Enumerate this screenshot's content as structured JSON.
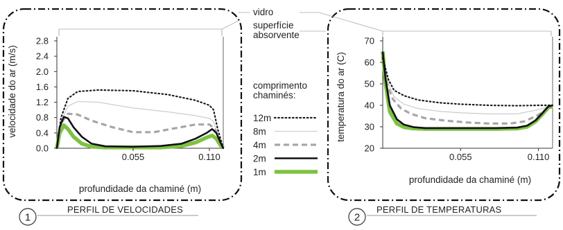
{
  "labels": {
    "vidro": "vidro",
    "superficie_line1": "superfície",
    "superficie_line2": "absorvente",
    "legend_title_line1": "comprimento",
    "legend_title_line2": "chaminés:"
  },
  "legend": [
    {
      "label": "12m",
      "style": "dotted"
    },
    {
      "label": "8m",
      "style": "thin"
    },
    {
      "label": "4m",
      "style": "dashed"
    },
    {
      "label": "2m",
      "style": "solid"
    },
    {
      "label": "1m",
      "style": "thick"
    }
  ],
  "colors": {
    "m12": "#1a1a1a",
    "m8": "#c8c8c8",
    "m4": "#a6a6a6",
    "m2": "#111111",
    "m1": "#7dc242",
    "axis": "#333333",
    "frame": "#111111"
  },
  "captions": [
    {
      "number": "1",
      "text": "PERFIL DE VELOCIDADES"
    },
    {
      "number": "2",
      "text": "PERFIL DE TEMPERATURAS"
    }
  ],
  "chart_data": [
    {
      "type": "line",
      "title": "PERFIL DE VELOCIDADES",
      "xlabel": "profundidade da chaminé (m)",
      "ylabel": "velocidade do ar (m/s)",
      "xlim": [
        0,
        0.12
      ],
      "ylim": [
        0,
        2.8
      ],
      "xticks": [
        0.055,
        0.11
      ],
      "xtick_labels": [
        "0.055",
        "0.110"
      ],
      "yticks": [
        0.0,
        0.4,
        0.8,
        1.2,
        1.6,
        2.0,
        2.4,
        2.8
      ],
      "ytick_labels": [
        "0.0",
        "0.4",
        "0.8",
        "1.2",
        "1.6",
        "2.0",
        "2.4",
        "2.8"
      ],
      "series": [
        {
          "name": "12m",
          "style": "dotted",
          "x": [
            0,
            0.003,
            0.008,
            0.015,
            0.03,
            0.055,
            0.08,
            0.1,
            0.11,
            0.113,
            0.116,
            0.12
          ],
          "y": [
            0,
            0.8,
            1.3,
            1.48,
            1.52,
            1.5,
            1.4,
            1.25,
            1.12,
            1.0,
            0.5,
            0
          ]
        },
        {
          "name": "8m",
          "style": "thin",
          "x": [
            0,
            0.003,
            0.008,
            0.015,
            0.03,
            0.055,
            0.08,
            0.1,
            0.11,
            0.113,
            0.116,
            0.12
          ],
          "y": [
            0,
            0.7,
            1.1,
            1.22,
            1.2,
            1.05,
            0.95,
            0.85,
            0.78,
            0.7,
            0.35,
            0
          ]
        },
        {
          "name": "4m",
          "style": "dashed",
          "x": [
            0,
            0.003,
            0.008,
            0.015,
            0.025,
            0.04,
            0.055,
            0.07,
            0.085,
            0.1,
            0.11,
            0.114,
            0.117,
            0.12
          ],
          "y": [
            0,
            0.65,
            0.9,
            0.88,
            0.72,
            0.55,
            0.42,
            0.42,
            0.52,
            0.62,
            0.62,
            0.5,
            0.25,
            0
          ]
        },
        {
          "name": "2m",
          "style": "solid",
          "x": [
            0,
            0.002,
            0.005,
            0.008,
            0.012,
            0.018,
            0.025,
            0.035,
            0.055,
            0.075,
            0.09,
            0.1,
            0.108,
            0.112,
            0.115,
            0.118,
            0.12
          ],
          "y": [
            0,
            0.55,
            0.82,
            0.78,
            0.55,
            0.3,
            0.12,
            0.05,
            0.04,
            0.06,
            0.12,
            0.25,
            0.4,
            0.5,
            0.4,
            0.15,
            0
          ]
        },
        {
          "name": "1m",
          "style": "thick",
          "x": [
            0,
            0.002,
            0.005,
            0.008,
            0.012,
            0.018,
            0.025,
            0.035,
            0.055,
            0.075,
            0.09,
            0.1,
            0.108,
            0.112,
            0.115,
            0.118,
            0.12
          ],
          "y": [
            0,
            0.4,
            0.6,
            0.5,
            0.3,
            0.12,
            0.04,
            0.02,
            0.02,
            0.02,
            0.06,
            0.15,
            0.28,
            0.33,
            0.25,
            0.08,
            0
          ]
        }
      ]
    },
    {
      "type": "line",
      "title": "PERFIL DE TEMPERATURAS",
      "xlabel": "profundidade da chaminé (m)",
      "ylabel": "temperatura do ar (C)",
      "xlim": [
        0,
        0.12
      ],
      "ylim": [
        20,
        70
      ],
      "xticks": [
        0.055,
        0.11
      ],
      "xtick_labels": [
        "0.055",
        "0.110"
      ],
      "yticks": [
        20,
        30,
        40,
        50,
        60,
        70
      ],
      "ytick_labels": [
        "20",
        "30",
        "40",
        "50",
        "60",
        "70"
      ],
      "series": [
        {
          "name": "12m",
          "style": "dotted",
          "x": [
            0,
            0.004,
            0.008,
            0.015,
            0.025,
            0.04,
            0.055,
            0.075,
            0.095,
            0.11,
            0.12
          ],
          "y": [
            62,
            52,
            47,
            44.5,
            42.5,
            41.2,
            40.5,
            40,
            39.8,
            40,
            40
          ]
        },
        {
          "name": "8m",
          "style": "thin",
          "x": [
            0,
            0.004,
            0.008,
            0.015,
            0.025,
            0.04,
            0.055,
            0.075,
            0.095,
            0.11,
            0.12
          ],
          "y": [
            63,
            50,
            44,
            40.5,
            38.5,
            37.2,
            36.5,
            36,
            36,
            38,
            40
          ]
        },
        {
          "name": "4m",
          "style": "dashed",
          "x": [
            0,
            0.003,
            0.007,
            0.013,
            0.02,
            0.03,
            0.045,
            0.06,
            0.075,
            0.09,
            0.1,
            0.11,
            0.115,
            0.12
          ],
          "y": [
            64,
            50,
            43,
            38.5,
            36,
            34,
            32.8,
            32,
            31.5,
            31.5,
            32.5,
            35.5,
            38,
            40
          ]
        },
        {
          "name": "2m",
          "style": "solid",
          "x": [
            0,
            0.002,
            0.005,
            0.01,
            0.015,
            0.022,
            0.03,
            0.055,
            0.08,
            0.095,
            0.102,
            0.108,
            0.113,
            0.117,
            0.12
          ],
          "y": [
            65,
            52,
            40,
            33.5,
            31,
            29.8,
            29.4,
            29.4,
            29.4,
            29.6,
            30.5,
            33,
            36.5,
            39.5,
            40
          ]
        },
        {
          "name": "1m",
          "style": "thick",
          "x": [
            0,
            0.002,
            0.005,
            0.01,
            0.015,
            0.022,
            0.03,
            0.055,
            0.08,
            0.095,
            0.102,
            0.108,
            0.113,
            0.117,
            0.12
          ],
          "y": [
            65,
            50,
            37,
            31.5,
            29.8,
            29.2,
            29,
            29,
            29,
            29.2,
            30,
            32.5,
            36,
            39,
            39.5
          ]
        }
      ]
    }
  ]
}
